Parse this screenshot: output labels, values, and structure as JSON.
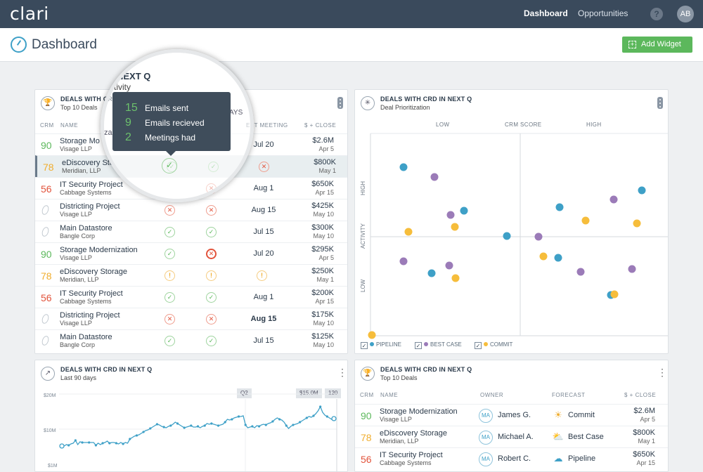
{
  "app": {
    "logo": "clari"
  },
  "nav": {
    "dashboard": "Dashboard",
    "opportunities": "Opportunities",
    "help": "?",
    "avatar": "AB"
  },
  "page": {
    "title": "Dashboard",
    "add_widget": "Add Widget"
  },
  "deals_card": {
    "title": "DEALS WITH CRD IN NEXT Q",
    "subtitle": "Top 10 Deals",
    "headers": {
      "crm": "CRM",
      "name": "NAME",
      "next_meeting": "EXT MEETING",
      "close": "$ + CLOSE"
    },
    "rows": [
      {
        "score": "90",
        "score_color": "g",
        "name": "Storage Mo",
        "company": "Visage LLP",
        "s1": "",
        "s2": "",
        "meeting": "Jul 20",
        "meeting_bold": false,
        "amount": "$2.6M",
        "date": "Apr 5"
      },
      {
        "score": "78",
        "score_color": "y",
        "name": "eDiscovery Sto",
        "company": "Meridian, LLP",
        "s1": "ok",
        "s2": "ok",
        "s3": "x",
        "meeting": "",
        "meeting_bold": false,
        "amount": "$800K",
        "date": "May 1"
      },
      {
        "score": "56",
        "score_color": "r",
        "name": "IT Security Project",
        "company": "Cabbage Systems",
        "s1": "",
        "s2": "x",
        "meeting": "Aug 1",
        "meeting_bold": false,
        "amount": "$650K",
        "date": "Apr 15"
      },
      {
        "score": "",
        "score_color": "",
        "name": "Districting Project",
        "company": "Visage LLP",
        "s1": "x",
        "s2": "x",
        "meeting": "Aug 15",
        "meeting_bold": false,
        "amount": "$425K",
        "date": "May 10"
      },
      {
        "score": "",
        "score_color": "",
        "name": "Main Datastore",
        "company": "Bangle Corp",
        "s1": "ok",
        "s2": "ok",
        "meeting": "Jul 15",
        "meeting_bold": false,
        "amount": "$300K",
        "date": "May 10"
      },
      {
        "score": "90",
        "score_color": "g",
        "name": "Storage Modernization",
        "company": "Visage LLP",
        "s1": "ok",
        "s2": "xb",
        "meeting": "Jul 20",
        "meeting_bold": false,
        "amount": "$295K",
        "date": "Apr 5"
      },
      {
        "score": "78",
        "score_color": "y",
        "name": "eDiscovery Storage",
        "company": "Meridian, LLP",
        "s1": "w",
        "s2": "w",
        "s3": "w",
        "meeting": "",
        "meeting_bold": false,
        "amount": "$250K",
        "date": "May 1"
      },
      {
        "score": "56",
        "score_color": "r",
        "name": "IT Security Project",
        "company": "Cabbage Systems",
        "s1": "ok",
        "s2": "ok",
        "meeting": "Aug 1",
        "meeting_bold": false,
        "amount": "$200K",
        "date": "Apr 15"
      },
      {
        "score": "",
        "score_color": "",
        "name": "Districting Project",
        "company": "Visage LLP",
        "s1": "x",
        "s2": "x",
        "meeting": "Aug 15",
        "meeting_bold": true,
        "amount": "$175K",
        "date": "May 10"
      },
      {
        "score": "",
        "score_color": "",
        "name": "Main Datastore",
        "company": "Bangle Corp",
        "s1": "ok",
        "s2": "ok",
        "meeting": "Jul 15",
        "meeting_bold": false,
        "amount": "$125K",
        "date": "May 10"
      }
    ]
  },
  "magnifier": {
    "title": "NEXT Q",
    "subtitle": "tivity",
    "frag1": "za",
    "frag2": "AYS"
  },
  "tooltip": {
    "items": [
      {
        "num": "15",
        "label": "Emails sent"
      },
      {
        "num": "9",
        "label": "Emails recieved"
      },
      {
        "num": "2",
        "label": "Meetings had"
      }
    ]
  },
  "scatter_card": {
    "title": "DEALS WITH CRD IN NEXT Q",
    "subtitle": "Deal Prioritization",
    "x_low": "LOW",
    "x_title": "CRM SCORE",
    "x_high": "HIGH",
    "y_high": "HIGH",
    "y_title": "ACTIVITY",
    "y_low": "LOW",
    "legend": [
      {
        "label": "PIPELINE",
        "color": "#3ea0c7"
      },
      {
        "label": "BEST CASE",
        "color": "#9b7bb8"
      },
      {
        "label": "COMMIT",
        "color": "#f6bd3b"
      }
    ],
    "colors": {
      "pipeline": "#3ea0c7",
      "best_case": "#9b7bb8",
      "commit": "#f6bd3b"
    }
  },
  "line_card": {
    "title": "DEALS WITH CRD IN NEXT Q",
    "subtitle": "Last 90 days",
    "y_top": "$20M",
    "y_mid": "$10M",
    "y_bot": "$1M",
    "pill_q2": "Q2",
    "pill_val": "$15.0M",
    "pill_day": "120"
  },
  "owner_card": {
    "title": "DEALS WITH CRD IN NEXT Q",
    "subtitle": "Top 10 Deals",
    "headers": {
      "crm": "CRM",
      "name": "NAME",
      "owner": "OWNER",
      "forecast": "FORECAST",
      "close": "$ + CLOSE"
    },
    "rows": [
      {
        "score": "90",
        "score_color": "g",
        "name": "Storage Modernization",
        "company": "Visage LLP",
        "owner_init": "MA",
        "owner": "James G.",
        "forecast": "Commit",
        "fc_icon": "sun-icon",
        "amount": "$2.6M",
        "date": "Apr 5"
      },
      {
        "score": "78",
        "score_color": "y",
        "name": "eDiscovery Storage",
        "company": "Meridian, LLP",
        "owner_init": "MA",
        "owner": "Michael A.",
        "forecast": "Best Case",
        "fc_icon": "partly-cloudy-icon",
        "amount": "$800K",
        "date": "May 1"
      },
      {
        "score": "56",
        "score_color": "r",
        "name": "IT Security Project",
        "company": "Cabbage Systems",
        "owner_init": "MA",
        "owner": "Robert C.",
        "forecast": "Pipeline",
        "fc_icon": "cloud-icon",
        "amount": "$650K",
        "date": "Apr 15"
      }
    ]
  }
}
